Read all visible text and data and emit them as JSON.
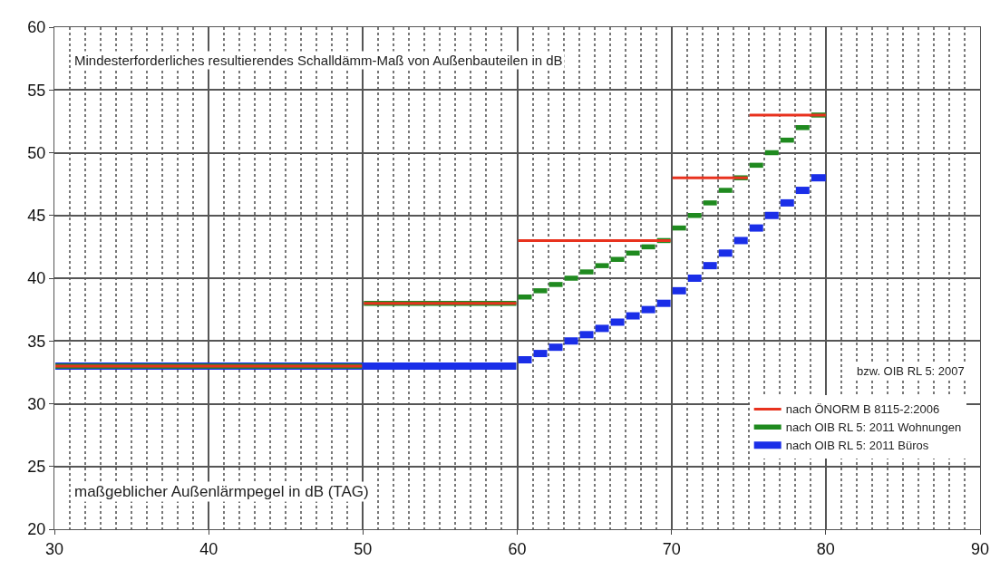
{
  "chart_data": {
    "type": "step",
    "ylabel": "Mindesterforderliches resultierendes Schalldämm-Maß von Außenbauteilen in dB",
    "xlabel": "maßgeblicher Außenlärmpegel in dB (TAG)",
    "annotations": [
      "bzw. OIB RL 5: 2007"
    ],
    "xlim": [
      30,
      90
    ],
    "xticks": [
      30,
      40,
      50,
      60,
      70,
      80,
      90
    ],
    "ylim": [
      20,
      60
    ],
    "yticks": [
      20,
      25,
      30,
      35,
      40,
      45,
      50,
      55,
      60
    ],
    "grid": true,
    "legend": "bottom right",
    "marker": "none",
    "line_style": "solid",
    "series": [
      {
        "name": "nach OIB RL 5: 2011 Büros",
        "color": "#1a2ee8",
        "x": [
          30,
          60,
          61,
          62,
          63,
          64,
          65,
          66,
          67,
          68,
          69,
          70,
          71,
          72,
          73,
          74,
          75,
          76,
          77,
          78,
          79,
          80
        ],
        "values": [
          33,
          33.5,
          34,
          34.5,
          35,
          35.5,
          36,
          36.5,
          37,
          37.5,
          38,
          39,
          40,
          41,
          42,
          43,
          44,
          45,
          46,
          47,
          48,
          48
        ]
      },
      {
        "name": "nach OIB RL 5: 2011 Wohnungen",
        "color": "#1f8a1f",
        "x": [
          30,
          50,
          60,
          61,
          62,
          63,
          64,
          65,
          66,
          67,
          68,
          69,
          70,
          71,
          72,
          73,
          74,
          75,
          76,
          77,
          78,
          79,
          80
        ],
        "values": [
          33,
          38,
          38.5,
          39,
          39.5,
          40,
          40.5,
          41,
          41.5,
          42,
          42.5,
          43,
          44,
          45,
          46,
          47,
          48,
          49,
          50,
          51,
          52,
          53,
          53
        ]
      },
      {
        "name": "nach ÖNORM B 8115-2:2006",
        "color": "#e8321e",
        "x": [
          30,
          50,
          60,
          70,
          75,
          80
        ],
        "values": [
          33,
          38,
          43,
          48,
          53,
          53
        ]
      }
    ]
  }
}
